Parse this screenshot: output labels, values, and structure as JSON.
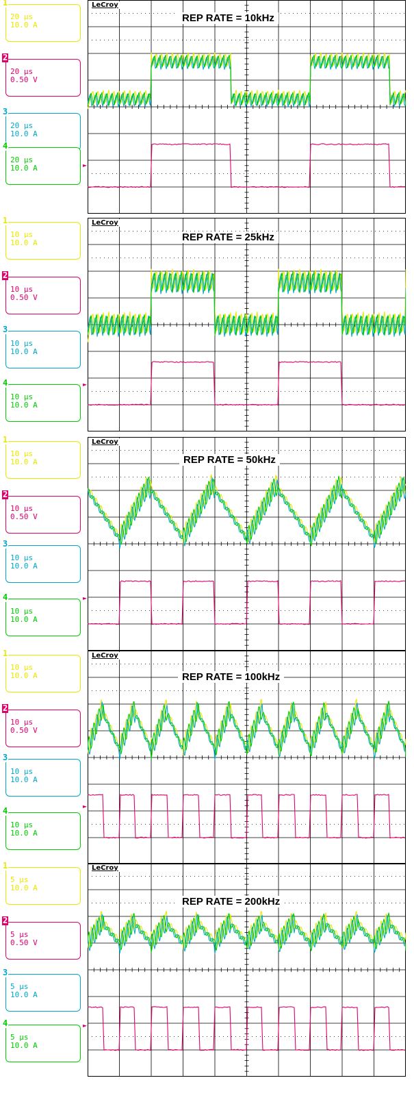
{
  "brand": "LeCroy",
  "colors": {
    "ch1": "#e8e800",
    "ch2": "#e0006c",
    "ch3": "#00a8c8",
    "ch4": "#00cc00",
    "grid": "#000000"
  },
  "panels": [
    {
      "title": "REP RATE = 10kHz",
      "channels": [
        {
          "num": "1",
          "timebase": "20 μs",
          "scale": "10.0 A"
        },
        {
          "num": "2",
          "timebase": "20 μs",
          "scale": "0.50 V"
        },
        {
          "num": "3",
          "timebase": "20 μs",
          "scale": "10.0 A"
        },
        {
          "num": "4",
          "timebase": "20 μs",
          "scale": "10.0 A"
        }
      ]
    },
    {
      "title": "REP RATE = 25kHz",
      "channels": [
        {
          "num": "1",
          "timebase": "10 μs",
          "scale": "10.0 A"
        },
        {
          "num": "2",
          "timebase": "10 μs",
          "scale": "0.50 V"
        },
        {
          "num": "3",
          "timebase": "10 μs",
          "scale": "10.0 A"
        },
        {
          "num": "4",
          "timebase": "10 μs",
          "scale": "10.0 A"
        }
      ]
    },
    {
      "title": "REP RATE = 50kHz",
      "channels": [
        {
          "num": "1",
          "timebase": "10 μs",
          "scale": "10.0 A"
        },
        {
          "num": "2",
          "timebase": "10 μs",
          "scale": "0.50 V"
        },
        {
          "num": "3",
          "timebase": "10 μs",
          "scale": "10.0 A"
        },
        {
          "num": "4",
          "timebase": "10 μs",
          "scale": "10.0 A"
        }
      ]
    },
    {
      "title": "REP RATE = 100kHz",
      "channels": [
        {
          "num": "1",
          "timebase": "10 μs",
          "scale": "10.0 A"
        },
        {
          "num": "2",
          "timebase": "10 μs",
          "scale": "0.50 V"
        },
        {
          "num": "3",
          "timebase": "10 μs",
          "scale": "10.0 A"
        },
        {
          "num": "4",
          "timebase": "10 μs",
          "scale": "10.0 A"
        }
      ]
    },
    {
      "title": "REP RATE = 200kHz",
      "channels": [
        {
          "num": "1",
          "timebase": "5 μs",
          "scale": "10.0 A"
        },
        {
          "num": "2",
          "timebase": "5 μs",
          "scale": "0.50 V"
        },
        {
          "num": "3",
          "timebase": "5 μs",
          "scale": "10.0 A"
        },
        {
          "num": "4",
          "timebase": "5 μs",
          "scale": "10.0 A"
        }
      ]
    }
  ],
  "chart_data": [
    {
      "type": "line",
      "title": "REP RATE = 10kHz",
      "grid": true,
      "x_divisions": 10,
      "y_divisions": 8,
      "series": [
        {
          "channel": "1",
          "waveform": "ripple current",
          "pulse_period_div": 5.0,
          "pulse_width_div": 2.5,
          "pulse_start_div": 2.0,
          "level_low_div": 4.3,
          "level_high_div": 5.7,
          "ripple_div": 0.5
        },
        {
          "channel": "2",
          "waveform": "square",
          "pulse_period_div": 5.0,
          "pulse_width_div": 2.5,
          "pulse_start_div": 2.0,
          "level_low_div": 1.0,
          "level_high_div": 2.6
        },
        {
          "channel": "3",
          "waveform": "ripple current",
          "pulse_period_div": 5.0,
          "pulse_width_div": 2.5,
          "pulse_start_div": 2.0,
          "level_low_div": 4.3,
          "level_high_div": 5.7,
          "ripple_div": 0.5
        },
        {
          "channel": "4",
          "waveform": "ripple current",
          "pulse_period_div": 5.0,
          "pulse_width_div": 2.5,
          "pulse_start_div": 2.0,
          "level_low_div": 4.3,
          "level_high_div": 5.7,
          "ripple_div": 0.5
        }
      ]
    },
    {
      "type": "line",
      "title": "REP RATE = 25kHz",
      "grid": true,
      "x_divisions": 10,
      "y_divisions": 8,
      "series": [
        {
          "channel": "1",
          "waveform": "ripple current",
          "pulse_period_div": 4.0,
          "pulse_width_div": 2.0,
          "pulse_start_div": 2.0,
          "level_low_div": 4.0,
          "level_high_div": 5.6,
          "ripple_div": 0.8
        },
        {
          "channel": "2",
          "waveform": "square",
          "pulse_period_div": 4.0,
          "pulse_width_div": 2.0,
          "pulse_start_div": 2.0,
          "level_low_div": 1.0,
          "level_high_div": 2.6
        },
        {
          "channel": "3",
          "waveform": "ripple current",
          "pulse_period_div": 4.0,
          "pulse_width_div": 2.0,
          "pulse_start_div": 2.0,
          "level_low_div": 4.0,
          "level_high_div": 5.6,
          "ripple_div": 0.8
        },
        {
          "channel": "4",
          "waveform": "ripple current",
          "pulse_period_div": 4.0,
          "pulse_width_div": 2.0,
          "pulse_start_div": 2.0,
          "level_low_div": 4.0,
          "level_high_div": 5.6,
          "ripple_div": 0.8
        }
      ]
    },
    {
      "type": "line",
      "title": "REP RATE = 50kHz",
      "grid": true,
      "x_divisions": 10,
      "y_divisions": 8,
      "series": [
        {
          "channel": "1",
          "waveform": "sawtooth current",
          "pulse_period_div": 2.0,
          "pulse_width_div": 1.0,
          "pulse_start_div": 1.0,
          "level_low_div": 4.2,
          "level_high_div": 6.2
        },
        {
          "channel": "2",
          "waveform": "square",
          "pulse_period_div": 2.0,
          "pulse_width_div": 1.0,
          "pulse_start_div": 1.0,
          "level_low_div": 1.0,
          "level_high_div": 2.6
        },
        {
          "channel": "3",
          "waveform": "sawtooth current",
          "pulse_period_div": 2.0,
          "pulse_width_div": 1.0,
          "pulse_start_div": 1.0,
          "level_low_div": 4.2,
          "level_high_div": 6.2
        },
        {
          "channel": "4",
          "waveform": "sawtooth current",
          "pulse_period_div": 2.0,
          "pulse_width_div": 1.0,
          "pulse_start_div": 1.0,
          "level_low_div": 4.2,
          "level_high_div": 6.2
        }
      ]
    },
    {
      "type": "line",
      "title": "REP RATE = 100kHz",
      "grid": true,
      "x_divisions": 10,
      "y_divisions": 8,
      "series": [
        {
          "channel": "1",
          "waveform": "sawtooth current",
          "pulse_period_div": 1.0,
          "pulse_width_div": 0.5,
          "pulse_start_div": 0.0,
          "level_low_div": 4.3,
          "level_high_div": 5.8
        },
        {
          "channel": "2",
          "waveform": "square",
          "pulse_period_div": 1.0,
          "pulse_width_div": 0.5,
          "pulse_start_div": 0.0,
          "level_low_div": 1.0,
          "level_high_div": 2.6
        },
        {
          "channel": "3",
          "waveform": "sawtooth current",
          "pulse_period_div": 1.0,
          "pulse_width_div": 0.5,
          "pulse_start_div": 0.0,
          "level_low_div": 4.3,
          "level_high_div": 5.8
        },
        {
          "channel": "4",
          "waveform": "sawtooth current",
          "pulse_period_div": 1.0,
          "pulse_width_div": 0.5,
          "pulse_start_div": 0.0,
          "level_low_div": 4.3,
          "level_high_div": 5.8
        }
      ]
    },
    {
      "type": "line",
      "title": "REP RATE = 200kHz",
      "grid": true,
      "x_divisions": 10,
      "y_divisions": 8,
      "series": [
        {
          "channel": "1",
          "waveform": "sawtooth current",
          "pulse_period_div": 1.0,
          "pulse_width_div": 0.5,
          "pulse_start_div": 0.0,
          "level_low_div": 5.0,
          "level_high_div": 5.8
        },
        {
          "channel": "2",
          "waveform": "square",
          "pulse_period_div": 1.0,
          "pulse_width_div": 0.5,
          "pulse_start_div": 0.0,
          "level_low_div": 1.0,
          "level_high_div": 2.6
        },
        {
          "channel": "3",
          "waveform": "sawtooth current",
          "pulse_period_div": 1.0,
          "pulse_width_div": 0.5,
          "pulse_start_div": 0.0,
          "level_low_div": 5.0,
          "level_high_div": 5.8
        },
        {
          "channel": "4",
          "waveform": "sawtooth current",
          "pulse_period_div": 1.0,
          "pulse_width_div": 0.5,
          "pulse_start_div": 0.0,
          "level_low_div": 5.0,
          "level_high_div": 5.8
        }
      ]
    }
  ]
}
